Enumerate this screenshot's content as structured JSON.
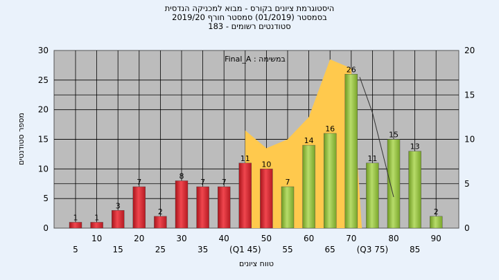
{
  "chart_data": {
    "type": "bar",
    "title_lines": [
      "היסטוגרמת ציונים בקורס - מבוא למכניקה הנדסית",
      "בסמסטר  (01/2019)  סמסטר חורף 2019/20",
      "סטודנטים רשומים - 183"
    ],
    "annotation": "במשימה : Final_A",
    "ylabel": "מספר סטודנטים",
    "xlabel": "טווח ציונים",
    "ylim": [
      0,
      30
    ],
    "yticks": [
      0,
      5,
      10,
      15,
      20,
      25,
      30
    ],
    "y2lim": [
      0,
      20
    ],
    "y2ticks": [
      0,
      5,
      10,
      15,
      20
    ],
    "grid": true,
    "x_tick_labels_lower": [
      "5",
      "15",
      "25",
      "35",
      "(Q1 45)",
      "55",
      "65",
      "(Q3 75)",
      "85"
    ],
    "x_tick_labels_upper": [
      "10",
      "20",
      "30",
      "40",
      "50",
      "60",
      "70",
      "80",
      "90"
    ],
    "categories": [
      "5",
      "10",
      "15",
      "20",
      "25",
      "30",
      "35",
      "40",
      "45",
      "50",
      "55",
      "60",
      "65",
      "70",
      "75",
      "80",
      "85",
      "90"
    ],
    "values": [
      1,
      1,
      3,
      7,
      2,
      8,
      7,
      7,
      11,
      10,
      7,
      14,
      16,
      26,
      11,
      15,
      13,
      2
    ],
    "bar_colors": [
      "red",
      "red",
      "red",
      "red",
      "red",
      "red",
      "red",
      "red",
      "red",
      "red",
      "green",
      "green",
      "green",
      "green",
      "green",
      "green",
      "green",
      "green"
    ],
    "area_series": {
      "x": [
        45,
        45,
        50,
        55,
        60,
        65,
        70,
        72.5
      ],
      "y_secondary": [
        1.5,
        11,
        9,
        10,
        12.5,
        19,
        18,
        0
      ],
      "color": "#ffc94d"
    },
    "line_series": {
      "x": [
        72,
        75,
        80
      ],
      "y_secondary": [
        17,
        13,
        3.5
      ]
    },
    "colors": {
      "plot_bg": "#bcbcbc",
      "page_bg": "#eaf2fb",
      "red_bar": "#e8333b",
      "green_bar": "#9bc84a",
      "area": "#ffc94d"
    }
  }
}
